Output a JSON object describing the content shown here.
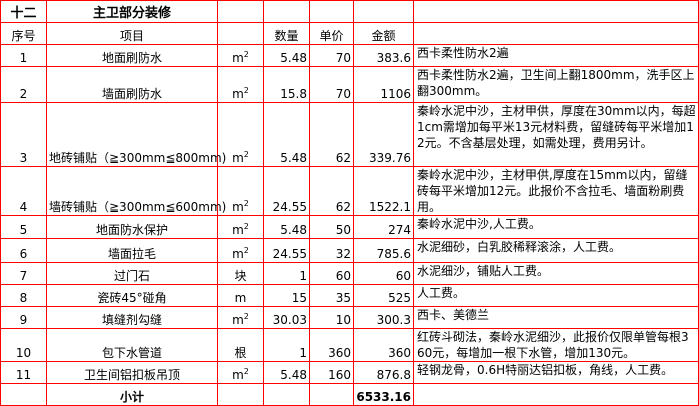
{
  "section": {
    "number": "十二",
    "title": "主卫部分装修"
  },
  "headers": {
    "index": "序号",
    "item": "项目",
    "unit": "",
    "quantity": "数量",
    "price": "单价",
    "amount": "金额",
    "note": ""
  },
  "rows": [
    {
      "index": "1",
      "item": "地面刷防水",
      "unit": "m",
      "unit_sup": "2",
      "quantity": "5.48",
      "price": "70",
      "amount": "383.6",
      "note": "西卡柔性防水2遍"
    },
    {
      "index": "2",
      "item": "墙面刷防水",
      "unit": "m",
      "unit_sup": "2",
      "quantity": "15.8",
      "price": "70",
      "amount": "1106",
      "note": "西卡柔性防水2遍，卫生间上翻1800mm，洗手区上翻300mm。"
    },
    {
      "index": "3",
      "item": "地砖铺贴（≧300mm≦800mm)",
      "unit": "m",
      "unit_sup": "2",
      "quantity": "5.48",
      "price": "62",
      "amount": "339.76",
      "note": "秦岭水泥中沙，主材甲供，厚度在30mm以内，每超1cm需增加每平米13元材料费，留缝砖每平米增加12元。不含基层处理，如需处理，费用另计。"
    },
    {
      "index": "4",
      "item": "墙砖铺贴（≧300mm≦600mm)",
      "unit": "m",
      "unit_sup": "2",
      "quantity": "24.55",
      "price": "62",
      "amount": "1522.1",
      "note": "秦岭水泥中沙，主材甲供,厚度在15mm以内，留缝砖每平米增加12元。此报价不含拉毛、墙面粉刷费用。"
    },
    {
      "index": "5",
      "item": "地面防水保护",
      "unit": "m",
      "unit_sup": "2",
      "quantity": "5.48",
      "price": "50",
      "amount": "274",
      "note": "秦岭水泥中沙,人工费。"
    },
    {
      "index": "6",
      "item": "墙面拉毛",
      "unit": "m",
      "unit_sup": "2",
      "quantity": "24.55",
      "price": "32",
      "amount": "785.6",
      "note": "水泥细砂，白乳胶稀释滚涂，人工费。"
    },
    {
      "index": "7",
      "item": "过门石",
      "unit": "块",
      "unit_sup": "",
      "quantity": "1",
      "price": "60",
      "amount": "60",
      "note": "水泥细沙，铺贴人工费。"
    },
    {
      "index": "8",
      "item": "瓷砖45°碰角",
      "unit": "m",
      "unit_sup": "",
      "quantity": "15",
      "price": "35",
      "amount": "525",
      "note": "人工费。"
    },
    {
      "index": "9",
      "item": "填缝剂勾缝",
      "unit": "m",
      "unit_sup": "2",
      "quantity": "30.03",
      "price": "10",
      "amount": "300.3",
      "note": "西卡、美德兰"
    },
    {
      "index": "10",
      "item": "包下水管道",
      "unit": "根",
      "unit_sup": "",
      "quantity": "1",
      "price": "360",
      "amount": "360",
      "note": "红砖斗砌法，秦岭水泥细沙，此报价仅限单管每根360元，每增加一根下水管，增加130元。"
    },
    {
      "index": "11",
      "item": "卫生间铝扣板吊顶",
      "unit": "m",
      "unit_sup": "2",
      "quantity": "5.48",
      "price": "160",
      "amount": "876.8",
      "note": "轻钢龙骨，0.6H特丽达铝扣板，角线，人工费。"
    }
  ],
  "subtotal": {
    "label": "小计",
    "amount": "6533.16"
  }
}
